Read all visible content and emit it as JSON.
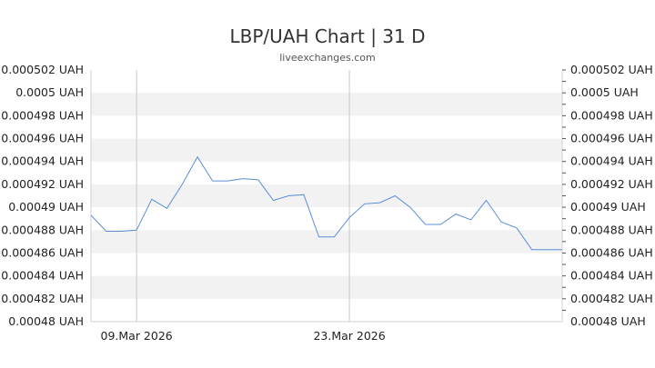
{
  "chart_data": {
    "type": "line",
    "title": "LBP/UAH Chart | 31 D",
    "subtitle": "liveexchanges.com",
    "xlabel": "",
    "ylabel": "",
    "unit": "UAH",
    "ylim": [
      0.00048,
      0.000502
    ],
    "yticks": [
      "0.000502 UAH",
      "0.0005 UAH",
      "0.000498 UAH",
      "0.000496 UAH",
      "0.000494 UAH",
      "0.000492 UAH",
      "0.00049 UAH",
      "0.000488 UAH",
      "0.000486 UAH",
      "0.000484 UAH",
      "0.000482 UAH",
      "0.00048 UAH"
    ],
    "ytick_values": [
      0.000502,
      0.0005,
      0.000498,
      0.000496,
      0.000494,
      0.000492,
      0.00049,
      0.000488,
      0.000486,
      0.000484,
      0.000482,
      0.00048
    ],
    "xticks": [
      {
        "label": "09.Mar 2026",
        "index": 3
      },
      {
        "label": "23.Mar 2026",
        "index": 17
      }
    ],
    "grid": "horizontal bands",
    "line_color": "#5b8ed6",
    "band_color": "#f2f2f2",
    "series": [
      {
        "values": [
          0.0004893,
          0.0004879,
          0.0004879,
          0.000488,
          0.0004907,
          0.0004899,
          0.000492,
          0.0004944,
          0.0004923,
          0.0004923,
          0.0004925,
          0.0004924,
          0.0004906,
          0.000491,
          0.0004911,
          0.0004874,
          0.0004874,
          0.0004891,
          0.0004903,
          0.0004904,
          0.000491,
          0.00049,
          0.0004885,
          0.0004885,
          0.0004894,
          0.0004889,
          0.0004906,
          0.0004887,
          0.0004882,
          0.0004863,
          0.0004863,
          0.0004863
        ]
      }
    ]
  }
}
